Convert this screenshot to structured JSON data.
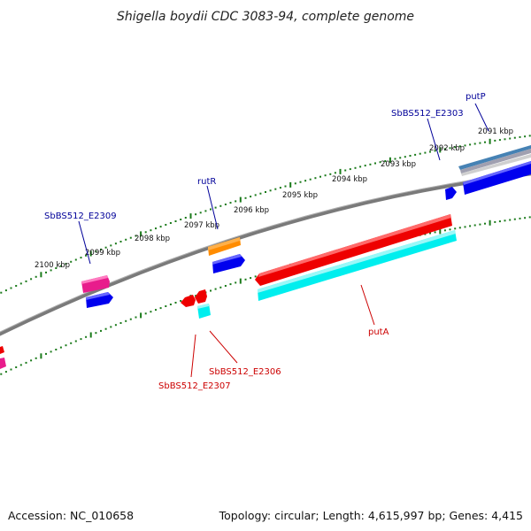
{
  "title": "Shigella boydii CDC 3083-94, complete genome",
  "footer": {
    "accession": "Accession: NC_010658",
    "topology": "Topology: circular; Length: 4,615,997 bp; Genes: 4,415"
  },
  "tick_labels": [
    "2091 kbp",
    "2092 kbp",
    "2093 kbp",
    "2094 kbp",
    "2095 kbp",
    "2096 kbp",
    "2097 kbp",
    "2098 kbp",
    "2099 kbp",
    "2100 kbp"
  ],
  "gene_labels": {
    "putP": "putP",
    "sb2303": "SbBS512_E2303",
    "rutR": "rutR",
    "sb2309": "SbBS512_E2309",
    "putA": "putA",
    "sb2306": "SbBS512_E2306",
    "sb2307": "SbBS512_E2307"
  },
  "colors": {
    "backbone": "#808080",
    "tick": "#1a7a1a",
    "forward_label": "#000099",
    "reverse_label": "#cc0000",
    "cds": "#0000ee",
    "gene_orange": "#ff8c00",
    "gene_magenta": "#e81c8c",
    "gene_red": "#ee0000",
    "gene_cyan": "#00eeee",
    "gene_steel": "#4682b4"
  }
}
